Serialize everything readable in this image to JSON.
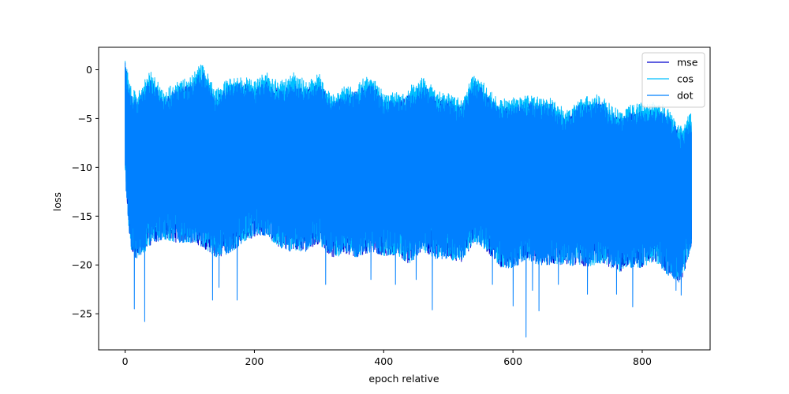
{
  "chart_data": {
    "type": "line",
    "xlabel": "epoch relative",
    "ylabel": "loss",
    "xlim": [
      -41,
      905
    ],
    "ylim": [
      -28.7,
      2.3
    ],
    "xticks": [
      0,
      200,
      400,
      600,
      800
    ],
    "yticks": [
      0,
      -5,
      -10,
      -15,
      -20,
      -25
    ],
    "xtick_labels": [
      "0",
      "200",
      "400",
      "600",
      "800"
    ],
    "ytick_labels": [
      "0",
      "−5",
      "−10",
      "−15",
      "−20",
      "−25"
    ],
    "grid": false,
    "legend_position": "top-right",
    "series": [
      {
        "name": "mse",
        "color": "#0000cd",
        "style": "noisy-band",
        "x_range": [
          0,
          876
        ]
      },
      {
        "name": "cos",
        "color": "#00bfff",
        "style": "noisy-band",
        "x_range": [
          0,
          876
        ]
      },
      {
        "name": "dot",
        "color": "#0080ff",
        "style": "noisy-band",
        "x_range": [
          0,
          876
        ]
      }
    ],
    "envelope": {
      "x": [
        0,
        5,
        10,
        20,
        40,
        60,
        80,
        100,
        120,
        140,
        160,
        180,
        200,
        220,
        240,
        260,
        280,
        300,
        320,
        340,
        360,
        380,
        400,
        420,
        440,
        460,
        480,
        500,
        520,
        540,
        560,
        580,
        600,
        620,
        640,
        660,
        680,
        700,
        720,
        740,
        760,
        780,
        800,
        820,
        840,
        860,
        876
      ],
      "upper": [
        0.8,
        -1.5,
        -3.0,
        -3.5,
        -1.0,
        -2.5,
        -1.5,
        -2.0,
        -0.5,
        -2.5,
        -1.0,
        -1.5,
        -2.5,
        -1.0,
        -1.5,
        -1.0,
        -2.5,
        -1.5,
        -3.0,
        -2.0,
        -2.5,
        -1.5,
        -3.0,
        -2.5,
        -2.5,
        -2.0,
        -3.0,
        -2.5,
        -3.5,
        -1.5,
        -3.0,
        -3.5,
        -3.0,
        -3.5,
        -4.0,
        -3.5,
        -4.5,
        -3.5,
        -4.0,
        -3.5,
        -4.5,
        -4.0,
        -4.5,
        -4.5,
        -4.5,
        -6.0,
        -5.0
      ],
      "lower": [
        -11.0,
        -16.0,
        -19.0,
        -20.0,
        -18.0,
        -17.0,
        -17.5,
        -18.0,
        -18.5,
        -19.0,
        -18.5,
        -18.0,
        -17.5,
        -17.0,
        -18.0,
        -18.5,
        -19.0,
        -18.0,
        -19.0,
        -18.5,
        -19.5,
        -19.0,
        -19.0,
        -18.5,
        -20.0,
        -19.0,
        -19.5,
        -19.0,
        -19.5,
        -18.0,
        -19.0,
        -20.0,
        -20.0,
        -19.5,
        -20.5,
        -20.0,
        -19.5,
        -20.0,
        -20.5,
        -20.0,
        -20.5,
        -20.0,
        -20.5,
        -20.0,
        -21.0,
        -21.5,
        -18.0
      ],
      "upper_cos_offset": 0.9
    },
    "spikes": [
      {
        "x": 14,
        "y": -24.5
      },
      {
        "x": 30,
        "y": -25.8
      },
      {
        "x": 135,
        "y": -23.6
      },
      {
        "x": 145,
        "y": -22.3
      },
      {
        "x": 173,
        "y": -23.6
      },
      {
        "x": 310,
        "y": -22.0
      },
      {
        "x": 380,
        "y": -21.5
      },
      {
        "x": 418,
        "y": -22.0
      },
      {
        "x": 450,
        "y": -21.5
      },
      {
        "x": 475,
        "y": -24.6
      },
      {
        "x": 568,
        "y": -22.0
      },
      {
        "x": 600,
        "y": -24.2
      },
      {
        "x": 620,
        "y": -27.4
      },
      {
        "x": 630,
        "y": -22.6
      },
      {
        "x": 640,
        "y": -24.7
      },
      {
        "x": 670,
        "y": -22.0
      },
      {
        "x": 715,
        "y": -23.0
      },
      {
        "x": 760,
        "y": -23.0
      },
      {
        "x": 785,
        "y": -24.3
      },
      {
        "x": 852,
        "y": -22.6
      },
      {
        "x": 860,
        "y": -23.1
      }
    ]
  }
}
